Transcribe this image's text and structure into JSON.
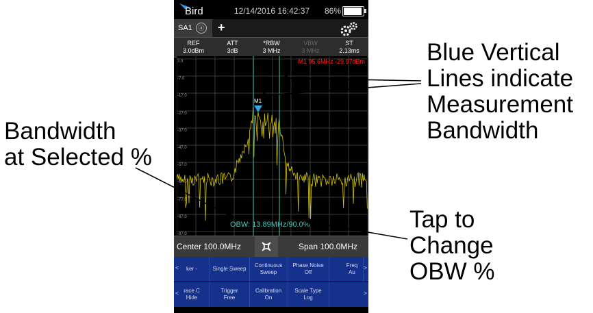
{
  "callouts": {
    "blue_lines": [
      "Blue Vertical",
      "Lines indicate",
      "Measurement",
      "Bandwidth"
    ],
    "bandwidth": [
      "Bandwidth",
      "at Selected %"
    ],
    "tap": [
      "Tap to",
      "Change",
      "OBW %"
    ]
  },
  "status": {
    "logo": "Bird",
    "datetime": "12/14/2016 16:42:37",
    "battery": "86%",
    "battery_level": 0.86
  },
  "tab": {
    "label": "SA1",
    "close": "ⓧ",
    "add": "+"
  },
  "params": [
    {
      "name": "REF",
      "value": "3.0dBm",
      "enabled": true
    },
    {
      "name": "ATT",
      "value": "3dB",
      "enabled": true
    },
    {
      "name": "*RBW",
      "value": "3 MHz",
      "enabled": true
    },
    {
      "name": "VBW",
      "value": "3 MHz",
      "enabled": false
    },
    {
      "name": "ST",
      "value": "2.13ms",
      "enabled": true
    }
  ],
  "plot": {
    "marker_readout": "M1 95.6MHz -29.97dBm",
    "marker_label": "M1",
    "obw_readout": "OBW: 13.89MHz/90.0%",
    "y_ticks": [
      "3.0",
      "-7.0",
      "-17.0",
      "-27.0",
      "-37.0",
      "-47.0",
      "-57.0",
      "-67.0",
      "-77.0",
      "-87.0",
      "-97.0"
    ],
    "trace_color": "#d4c600",
    "obw_line_color": "#3aa79a"
  },
  "bottom": {
    "center": "Center 100.0MHz",
    "span": "Span 100.0MHz"
  },
  "softkeys_row1": [
    "ker -",
    "Single Sweep",
    "Continuous\nSweep",
    "Phase Noise\nOff",
    "Freq\nAu"
  ],
  "softkeys_row2": [
    "race C\nHide",
    "Trigger\nFree",
    "Calibration\nOn",
    "Scale Type\nLog"
  ]
}
